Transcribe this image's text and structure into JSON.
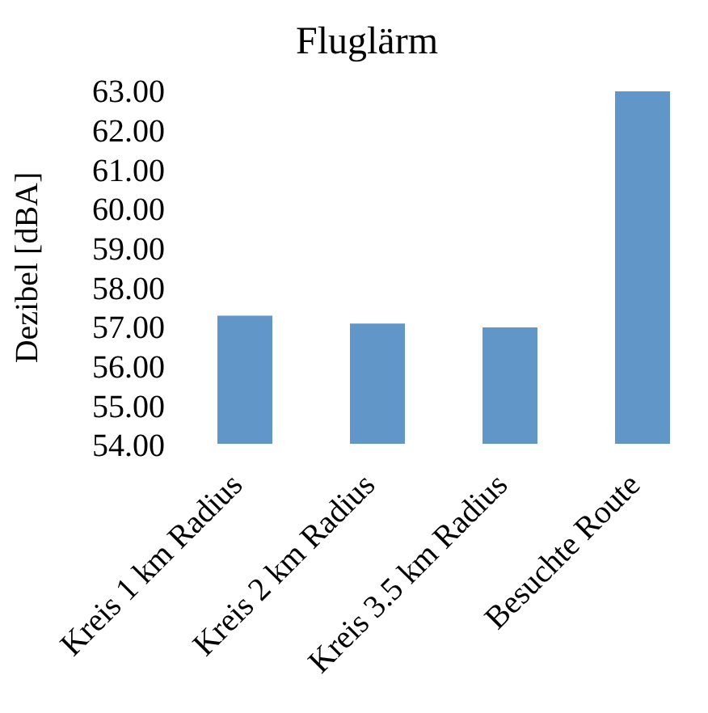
{
  "chart_data": {
    "type": "bar",
    "title": "Fluglärm",
    "ylabel": "Dezibel [dBA]",
    "categories": [
      "Kreis 1 km Radius",
      "Kreis 2 km Radius",
      "Kreis 3.5 km Radius",
      "Besuchte Route"
    ],
    "values": [
      57.3,
      57.1,
      57.0,
      63.0
    ],
    "color": "#6096c8",
    "ylim": [
      54,
      63
    ],
    "yticks": [
      {
        "value": 54,
        "label": "54.00"
      },
      {
        "value": 55,
        "label": "55.00"
      },
      {
        "value": 56,
        "label": "56.00"
      },
      {
        "value": 57,
        "label": "57.00"
      },
      {
        "value": 58,
        "label": "58.00"
      },
      {
        "value": 59,
        "label": "59.00"
      },
      {
        "value": 60,
        "label": "60.00"
      },
      {
        "value": 61,
        "label": "61.00"
      },
      {
        "value": 62,
        "label": "62.00"
      },
      {
        "value": 63,
        "label": "63.00"
      }
    ],
    "grid": false
  }
}
